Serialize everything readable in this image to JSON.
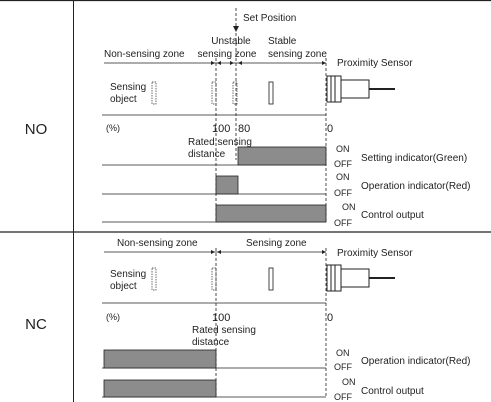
{
  "header": {
    "set_position": "Set Position"
  },
  "no_section": {
    "row_label": "NO",
    "zones": {
      "non_sensing": "Non-sensing zone",
      "unstable_line1": "Unstable",
      "unstable_line2": "sensing zone",
      "stable_line1": "Stable",
      "stable_line2": "sensing zone"
    },
    "sensing_object_line1": "Sensing",
    "sensing_object_line2": "object",
    "sensor_label": "Proximity Sensor",
    "scale": {
      "unit": "(%)",
      "tick_100": "100",
      "tick_80": "80",
      "tick_0": "0"
    },
    "rated_line1": "Rated sensing",
    "rated_line2": "distance",
    "on_label": "ON",
    "off_label": "OFF",
    "signals": [
      {
        "label": "Setting indicator(Green)"
      },
      {
        "label": "Operation indicator(Red)"
      },
      {
        "label": "Control output"
      }
    ]
  },
  "nc_section": {
    "row_label": "NC",
    "zones": {
      "non_sensing": "Non-sensing zone",
      "sensing": "Sensing zone"
    },
    "sensing_object_line1": "Sensing",
    "sensing_object_line2": "object",
    "sensor_label": "Proximity Sensor",
    "scale": {
      "unit": "(%)",
      "tick_100": "100",
      "tick_0": "0"
    },
    "rated_line1": "Rated sensing",
    "rated_line2": "distance",
    "on_label": "ON",
    "off_label": "OFF",
    "signals": [
      {
        "label": "Operation indicator(Red)"
      },
      {
        "label": "Control output"
      }
    ]
  },
  "colors": {
    "signal_fill": "#8c8c8c",
    "line": "#222222"
  }
}
